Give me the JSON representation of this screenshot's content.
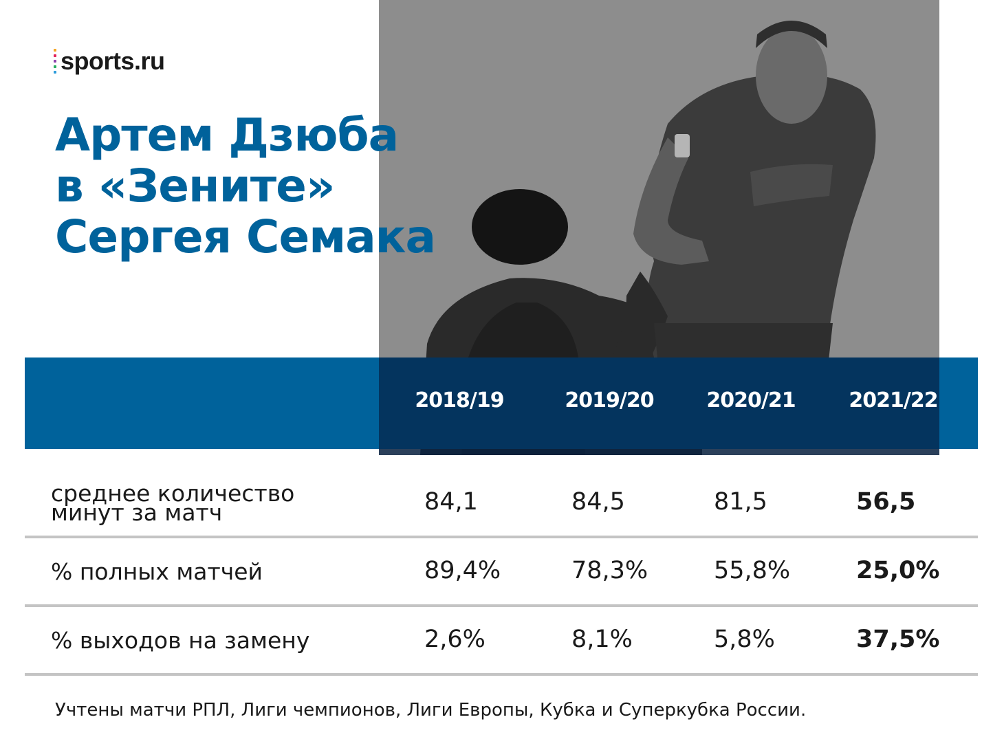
{
  "brand": {
    "logo_text": "sports.ru",
    "dot_colors": [
      "#f5a623",
      "#e2245a",
      "#8e44ad",
      "#27ae60",
      "#2d9cdb"
    ]
  },
  "title_lines": [
    "Артем Дзюба",
    "в «Зените»",
    "Сергея Семака"
  ],
  "colors": {
    "accent_blue": "#00629b",
    "divider": "#c4c4c4",
    "text": "#1a1a1a"
  },
  "chart_data": {
    "type": "table",
    "columns": [
      "2018/19",
      "2019/20",
      "2020/21",
      "2021/22"
    ],
    "rows": [
      {
        "label_lines": [
          "среднее количество",
          "минут за матч"
        ],
        "values": [
          "84,1",
          "84,5",
          "81,5",
          "56,5"
        ],
        "bold_index": 3
      },
      {
        "label_lines": [
          "% полных матчей"
        ],
        "values": [
          "89,4%",
          "78,3%",
          "55,8%",
          "25,0%"
        ],
        "bold_index": 3
      },
      {
        "label_lines": [
          "% выходов на замену"
        ],
        "values": [
          "2,6%",
          "8,1%",
          "5,8%",
          "37,5%"
        ],
        "bold_index": 3
      }
    ]
  },
  "footnote": "Учтены матчи РПЛ, Лиги чемпионов, Лиги Европы, Кубка и Суперкубка России."
}
